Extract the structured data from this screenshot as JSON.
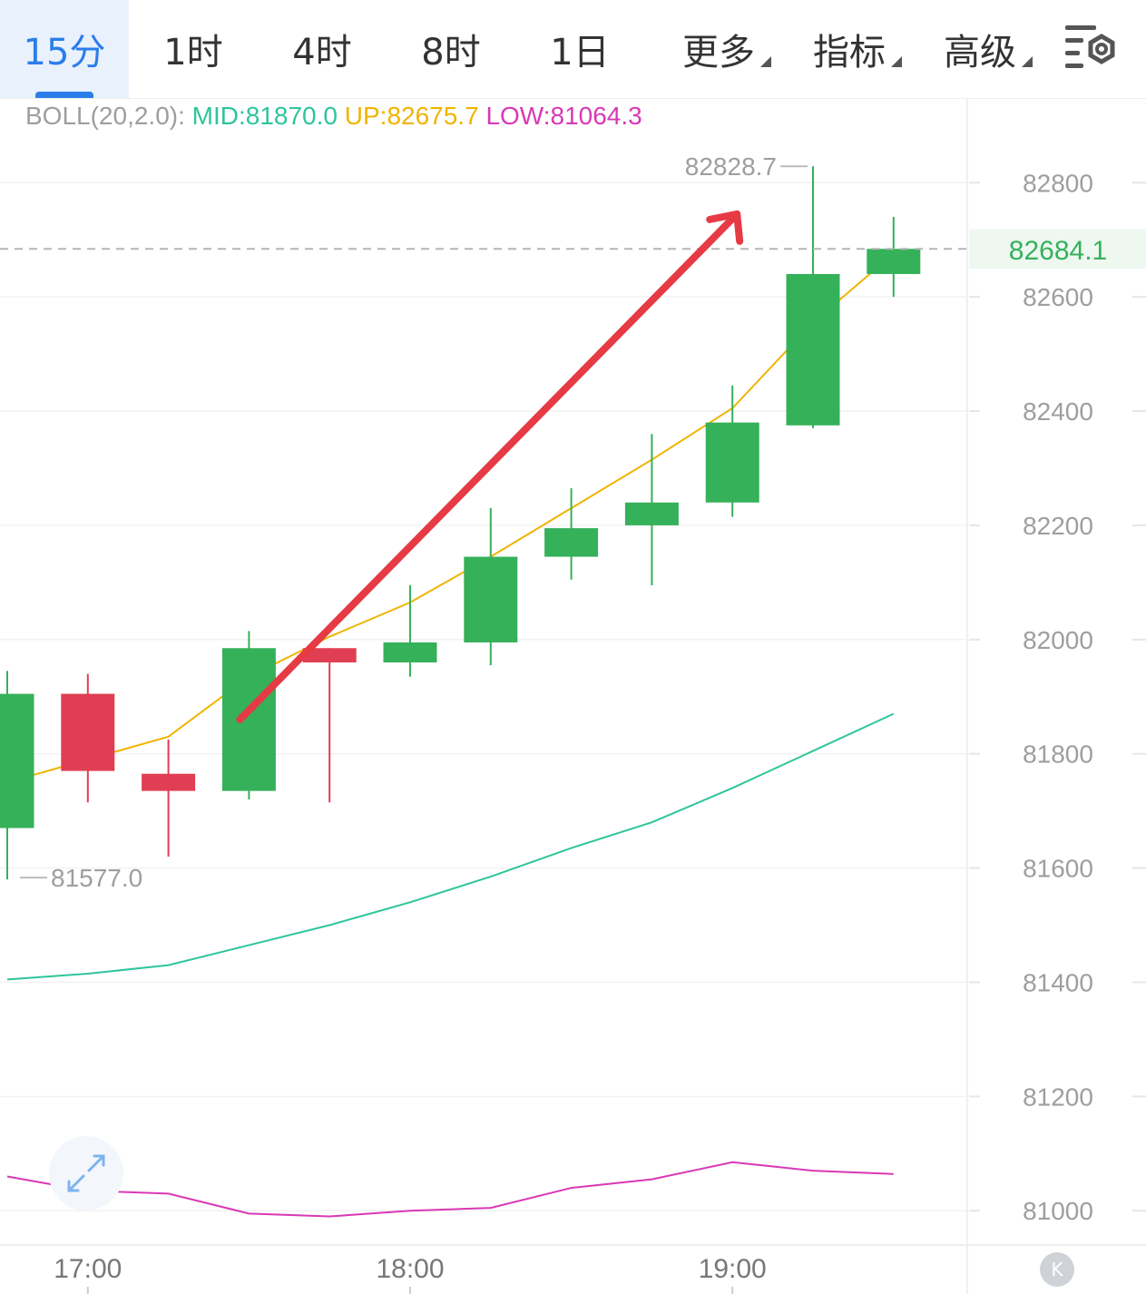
{
  "tabs": [
    {
      "label": "15分",
      "active": true
    },
    {
      "label": "1时",
      "active": false
    },
    {
      "label": "4时",
      "active": false
    },
    {
      "label": "8时",
      "active": false
    },
    {
      "label": "1日",
      "active": false
    },
    {
      "label": "更多",
      "active": false,
      "dropdown": true
    },
    {
      "label": "指标",
      "active": false,
      "dropdown": true
    },
    {
      "label": "高级",
      "active": false,
      "dropdown": true
    }
  ],
  "settings_icon": "chart-settings-gear-icon",
  "boll_legend": {
    "label": "BOLL(20,2.0):",
    "mid": "MID:81870.0",
    "up": "UP:82675.7",
    "low": "LOW:81064.3"
  },
  "colors": {
    "accent": "#2b7de9",
    "up_candle": "#35b15a",
    "down_candle": "#e03e52",
    "mid_line": "#2ec59b",
    "up_line": "#f0b400",
    "low_line": "#d938b5",
    "arrow": "#e63a44",
    "axis_text": "#9e9e9e",
    "current_price": "#35b15a"
  },
  "expand_icon": "expand-arrows-icon",
  "k_button_label": "K",
  "chart_data": {
    "type": "candlestick",
    "indicator": "BOLL(20,2.0)",
    "ylim": [
      80940,
      82945
    ],
    "y_ticks": [
      "82800",
      "82600",
      "82400",
      "82200",
      "82000",
      "81800",
      "81600",
      "81400",
      "81200",
      "81000"
    ],
    "x_ticks": [
      {
        "label": "17:00",
        "index": 1
      },
      {
        "label": "18:00",
        "index": 5
      },
      {
        "label": "19:00",
        "index": 9
      }
    ],
    "candles": [
      {
        "open": 81670,
        "close": 81905,
        "high": 81945,
        "low": 81580
      },
      {
        "open": 81905,
        "close": 81770,
        "high": 81940,
        "low": 81715
      },
      {
        "open": 81765,
        "close": 81735,
        "high": 81825,
        "low": 81620
      },
      {
        "open": 81735,
        "close": 81985,
        "high": 82015,
        "low": 81720
      },
      {
        "open": 81985,
        "close": 81960,
        "high": 81985,
        "low": 81715
      },
      {
        "open": 81960,
        "close": 81995,
        "high": 82095,
        "low": 81935
      },
      {
        "open": 81995,
        "close": 82145,
        "high": 82230,
        "low": 81955
      },
      {
        "open": 82145,
        "close": 82195,
        "high": 82265,
        "low": 82105
      },
      {
        "open": 82200,
        "close": 82240,
        "high": 82360,
        "low": 82095
      },
      {
        "open": 82240,
        "close": 82380,
        "high": 82445,
        "low": 82215
      },
      {
        "open": 82375,
        "close": 82640,
        "high": 82828.7,
        "low": 82370
      },
      {
        "open": 82640,
        "close": 82684.1,
        "high": 82740,
        "low": 82600
      }
    ],
    "boll_up": [
      81750,
      81790,
      81830,
      81935,
      82005,
      82065,
      82145,
      82230,
      82315,
      82405,
      82555,
      82675.7
    ],
    "boll_mid": [
      81405,
      81415,
      81430,
      81465,
      81500,
      81540,
      81585,
      81635,
      81680,
      81740,
      81805,
      81870.0
    ],
    "boll_low": [
      81060,
      81035,
      81030,
      80995,
      80990,
      81000,
      81005,
      81040,
      81055,
      81085,
      81070,
      81064.3
    ],
    "max_label": "82828.7",
    "min_label": "81577.0",
    "current_price_label": "82684.1",
    "current_price": 82684.1,
    "annotation": {
      "type": "arrow",
      "from": {
        "index": 3,
        "value": 81860
      },
      "to": {
        "index": 9,
        "value": 82745
      }
    }
  }
}
